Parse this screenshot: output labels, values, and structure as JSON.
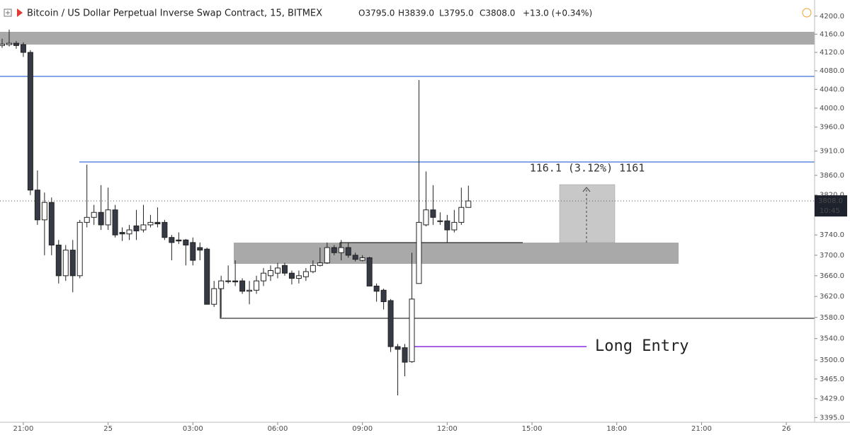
{
  "header": {
    "title": "Bitcoin / US Dollar Perpetual Inverse Swap Contract, 15, BITMEX",
    "ohlc": [
      "O3795.0",
      "H3839.0",
      "L3795.0",
      "C3808.0"
    ],
    "change": "+13.0 (+0.34%)"
  },
  "chart_data": {
    "type": "candlestick",
    "log_scale": true,
    "ylim": [
      3389,
      4236
    ],
    "yticks": [
      {
        "value": 4200,
        "label": "4200.0"
      },
      {
        "value": 4160,
        "label": "4160.0"
      },
      {
        "value": 4120,
        "label": "4120.0"
      },
      {
        "value": 4080,
        "label": "4080.0"
      },
      {
        "value": 4040,
        "label": "4040.0"
      },
      {
        "value": 4000,
        "label": "4000.0"
      },
      {
        "value": 3960,
        "label": "3960.0"
      },
      {
        "value": 3910,
        "label": "3910.0"
      },
      {
        "value": 3860,
        "label": "3860.0"
      },
      {
        "value": 3820,
        "label": "3820.0"
      },
      {
        "value": 3740,
        "label": "3740.0"
      },
      {
        "value": 3700,
        "label": "3700.0"
      },
      {
        "value": 3660,
        "label": "3660.0"
      },
      {
        "value": 3620,
        "label": "3620.0"
      },
      {
        "value": 3580,
        "label": "3580.0"
      },
      {
        "value": 3540,
        "label": "3540.0"
      },
      {
        "value": 3500,
        "label": "3500.0"
      },
      {
        "value": 3465,
        "label": "3465.0"
      },
      {
        "value": 3429,
        "label": "3429.0"
      },
      {
        "value": 3395,
        "label": "3395.0"
      }
    ],
    "xlim": [
      -0.3,
      115
    ],
    "xticks": [
      {
        "value": 3,
        "label": "21:00"
      },
      {
        "value": 15,
        "label": "25"
      },
      {
        "value": 27,
        "label": "03:00"
      },
      {
        "value": 39,
        "label": "06:00"
      },
      {
        "value": 51,
        "label": "09:00"
      },
      {
        "value": 63,
        "label": "12:00"
      },
      {
        "value": 75,
        "label": "15:00"
      },
      {
        "value": 87,
        "label": "18:00"
      },
      {
        "value": 99,
        "label": "21:00"
      },
      {
        "value": 111,
        "label": "26"
      }
    ],
    "up_color": "#ffffff",
    "down_color": "#363a45",
    "open": [
      4135,
      4137,
      4140,
      4137,
      4120,
      3830,
      3770,
      3805,
      3720,
      3660,
      3710,
      3660,
      3765,
      3775,
      3785,
      3760,
      3790,
      3745,
      3742,
      3758,
      3750,
      3760,
      3765,
      3765,
      3735,
      3730,
      3730,
      3725,
      3715,
      3712,
      3605,
      3635,
      3650,
      3650,
      3650,
      3630,
      3632,
      3650,
      3660,
      3665,
      3680,
      3665,
      3655,
      3658,
      3668,
      3680,
      3685,
      3715,
      3705,
      3715,
      3700,
      3690,
      3695,
      3640,
      3632,
      3612,
      3525,
      3523,
      3497,
      3645,
      3760,
      3790,
      3768,
      3768,
      3750,
      3765,
      3795
    ],
    "high": [
      4150,
      4170,
      4145,
      4142,
      4125,
      3870,
      3825,
      3815,
      3730,
      3720,
      3730,
      3770,
      3882,
      3800,
      3840,
      3835,
      3800,
      3755,
      3760,
      3790,
      3800,
      3780,
      3795,
      3770,
      3740,
      3745,
      3732,
      3735,
      3725,
      3715,
      3650,
      3660,
      3680,
      3690,
      3655,
      3650,
      3660,
      3675,
      3680,
      3685,
      3685,
      3670,
      3670,
      3675,
      3690,
      3715,
      3725,
      3720,
      3730,
      3725,
      3705,
      3700,
      3697,
      3645,
      3635,
      3615,
      3530,
      3530,
      3705,
      4060,
      3868,
      3840,
      3785,
      3780,
      3790,
      3835,
      3839
    ],
    "low": [
      4130,
      4133,
      4128,
      4110,
      3820,
      3760,
      3700,
      3700,
      3645,
      3650,
      3628,
      3655,
      3755,
      3760,
      3750,
      3750,
      3735,
      3728,
      3730,
      3730,
      3745,
      3755,
      3755,
      3730,
      3690,
      3722,
      3680,
      3680,
      3690,
      3605,
      3600,
      3580,
      3645,
      3640,
      3625,
      3605,
      3625,
      3640,
      3650,
      3655,
      3660,
      3643,
      3645,
      3650,
      3665,
      3678,
      3683,
      3700,
      3690,
      3695,
      3688,
      3688,
      3640,
      3610,
      3595,
      3515,
      3435,
      3470,
      3495,
      3645,
      3757,
      3760,
      3760,
      3725,
      3745,
      3760,
      3795
    ],
    "close": [
      4138,
      4140,
      4135,
      4120,
      3830,
      3770,
      3805,
      3720,
      3660,
      3710,
      3660,
      3765,
      3775,
      3785,
      3760,
      3790,
      3740,
      3742,
      3750,
      3748,
      3760,
      3765,
      3762,
      3735,
      3725,
      3728,
      3720,
      3690,
      3710,
      3605,
      3635,
      3650,
      3650,
      3648,
      3630,
      3632,
      3650,
      3665,
      3670,
      3675,
      3665,
      3655,
      3660,
      3668,
      3680,
      3685,
      3715,
      3705,
      3715,
      3700,
      3692,
      3695,
      3640,
      3630,
      3610,
      3525,
      3520,
      3496,
      3615,
      3765,
      3790,
      3775,
      3768,
      3750,
      3765,
      3795,
      3808
    ],
    "annotations": {
      "measure": "116.1 (3.12%) 1161",
      "label": "Long Entry",
      "last_price": "3808.0",
      "countdown": "10:45"
    }
  }
}
